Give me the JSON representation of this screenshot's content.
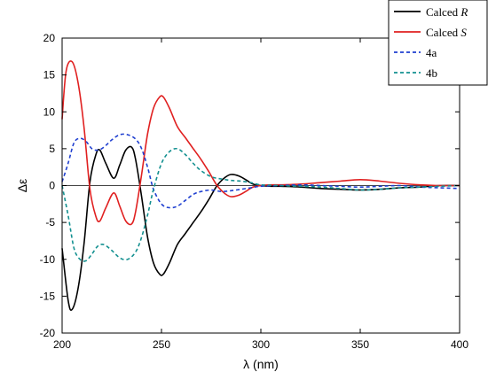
{
  "chart_data": {
    "type": "line",
    "xlabel": "λ (nm)",
    "ylabel": "Δε",
    "xlim": [
      200,
      400
    ],
    "ylim": [
      -20,
      20
    ],
    "xticks": [
      200,
      250,
      300,
      350,
      400
    ],
    "yticks": [
      -20,
      -15,
      -10,
      -5,
      0,
      5,
      10,
      15,
      20
    ],
    "legend_position": "top-right",
    "zero_line": true,
    "series": [
      {
        "name": "Calced R",
        "name_prefix": "Calced ",
        "name_suffix": "R",
        "color": "#000000",
        "dash": "solid",
        "x": [
          200,
          203,
          205,
          208,
          211,
          214,
          217,
          219,
          222,
          226,
          229,
          232,
          235,
          237,
          240,
          243,
          246,
          249,
          251,
          254,
          258,
          262,
          266,
          270,
          274,
          278,
          282,
          285,
          289,
          293,
          296,
          300,
          305,
          310,
          320,
          330,
          340,
          350,
          360,
          370,
          380,
          390,
          400
        ],
        "y": [
          -8.5,
          -15.5,
          -16.8,
          -14.0,
          -8.0,
          0.5,
          4.2,
          4.8,
          3.0,
          1.0,
          2.8,
          4.8,
          5.2,
          3.5,
          -1.5,
          -7.0,
          -10.5,
          -12.0,
          -12.0,
          -10.5,
          -8.0,
          -6.5,
          -5.0,
          -3.5,
          -1.8,
          0.0,
          1.1,
          1.5,
          1.3,
          0.7,
          0.2,
          0.0,
          -0.1,
          -0.1,
          -0.2,
          -0.4,
          -0.5,
          -0.6,
          -0.5,
          -0.3,
          -0.2,
          0.0,
          0.0
        ]
      },
      {
        "name": "Calced S",
        "name_prefix": "Calced ",
        "name_suffix": "S",
        "color": "#e02020",
        "dash": "solid",
        "x": [
          200,
          202,
          205,
          208,
          211,
          214,
          217,
          219,
          222,
          226,
          229,
          232,
          235,
          237,
          240,
          243,
          246,
          249,
          251,
          254,
          258,
          262,
          266,
          270,
          274,
          278,
          282,
          285,
          289,
          293,
          296,
          300,
          305,
          310,
          320,
          330,
          340,
          350,
          360,
          370,
          380,
          390,
          400
        ],
        "y": [
          9.0,
          15.5,
          16.8,
          14.0,
          8.0,
          -0.5,
          -4.2,
          -4.8,
          -3.0,
          -1.0,
          -2.8,
          -4.8,
          -5.2,
          -3.5,
          1.5,
          7.0,
          10.5,
          12.0,
          12.0,
          10.5,
          8.0,
          6.5,
          5.0,
          3.5,
          1.8,
          0.0,
          -1.1,
          -1.5,
          -1.3,
          -0.7,
          -0.2,
          0.0,
          0.1,
          0.1,
          0.2,
          0.4,
          0.6,
          0.8,
          0.6,
          0.3,
          0.1,
          0.0,
          0.0
        ]
      },
      {
        "name": "4a",
        "color": "#1f3fd0",
        "dash": "dashed",
        "x": [
          200,
          203,
          206,
          209,
          212,
          215,
          218,
          221,
          225,
          229,
          233,
          237,
          240,
          243,
          246,
          250,
          254,
          258,
          262,
          266,
          270,
          275,
          280,
          285,
          290,
          295,
          300,
          310,
          320,
          330,
          340,
          350,
          360,
          370,
          380,
          390,
          400
        ],
        "y": [
          0.5,
          3.0,
          5.8,
          6.4,
          6.0,
          5.0,
          4.8,
          5.2,
          6.2,
          6.9,
          6.9,
          6.3,
          5.0,
          2.5,
          -0.5,
          -2.5,
          -3.0,
          -2.8,
          -2.0,
          -1.2,
          -0.8,
          -0.6,
          -0.8,
          -0.7,
          -0.5,
          -0.3,
          -0.1,
          0.0,
          0.1,
          0.0,
          -0.1,
          -0.2,
          -0.1,
          0.0,
          -0.2,
          -0.3,
          -0.4
        ]
      },
      {
        "name": "4b",
        "color": "#139090",
        "dash": "dashed",
        "x": [
          200,
          203,
          206,
          209,
          212,
          215,
          218,
          221,
          225,
          229,
          233,
          237,
          240,
          243,
          246,
          250,
          254,
          258,
          262,
          266,
          270,
          275,
          280,
          285,
          290,
          295,
          300,
          310,
          320,
          330,
          340,
          350,
          360,
          370,
          380,
          390,
          400
        ],
        "y": [
          0.0,
          -4.0,
          -8.5,
          -10.0,
          -10.2,
          -9.3,
          -8.2,
          -8.0,
          -8.8,
          -9.8,
          -10.0,
          -9.0,
          -7.0,
          -4.0,
          -0.5,
          3.0,
          4.6,
          5.0,
          4.2,
          3.0,
          2.0,
          1.2,
          0.9,
          0.7,
          0.6,
          0.4,
          0.1,
          0.0,
          -0.1,
          -0.2,
          -0.4,
          -0.6,
          -0.5,
          -0.3,
          -0.2,
          -0.1,
          0.0
        ]
      }
    ]
  }
}
